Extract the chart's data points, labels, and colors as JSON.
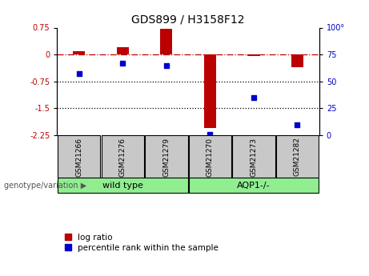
{
  "title": "GDS899 / H3158F12",
  "samples": [
    "GSM21266",
    "GSM21276",
    "GSM21279",
    "GSM21270",
    "GSM21273",
    "GSM21282"
  ],
  "log_ratio": [
    0.1,
    0.2,
    0.72,
    -2.05,
    -0.05,
    -0.35
  ],
  "percentile_rank": [
    57,
    67,
    65,
    1,
    35,
    10
  ],
  "ylim_left": [
    -2.25,
    0.75
  ],
  "ylim_right": [
    0,
    100
  ],
  "yticks_left": [
    0.75,
    0,
    -0.75,
    -1.5,
    -2.25
  ],
  "yticks_right": [
    100,
    75,
    50,
    25,
    0
  ],
  "hlines": [
    -0.75,
    -1.5
  ],
  "bar_width": 0.28,
  "red_color": "#BB0000",
  "blue_color": "#0000CC",
  "dashed_line_color": "#BB0000",
  "dotted_line_color": "#000000",
  "sample_box_color": "#C8C8C8",
  "green_color": "#90EE90",
  "background_color": "#FFFFFF",
  "title_fontsize": 10,
  "tick_fontsize": 7,
  "legend_fontsize": 7.5,
  "sample_fontsize": 6.5
}
